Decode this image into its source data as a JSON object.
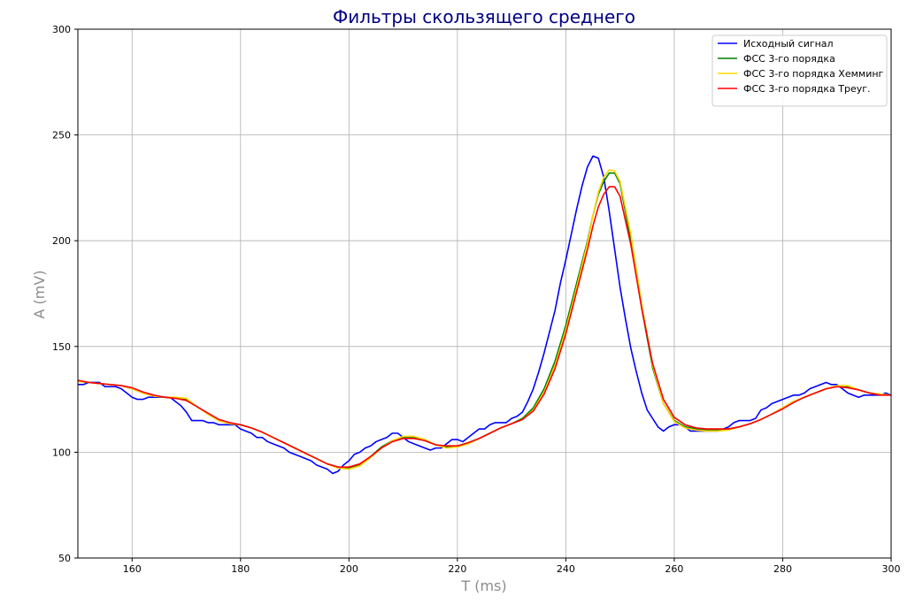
{
  "chart_data": {
    "type": "line",
    "title": "Фильтры скользящего среднего",
    "xlabel": "T (ms)",
    "ylabel": "A (mV)",
    "xlim": [
      150,
      300
    ],
    "ylim": [
      50,
      300
    ],
    "xticks": [
      160,
      180,
      200,
      220,
      240,
      260,
      280,
      300
    ],
    "yticks": [
      50,
      100,
      150,
      200,
      250,
      300
    ],
    "grid": true,
    "legend_position": "top-right",
    "series": [
      {
        "name": "Исходный сигнал",
        "color": "#0000ff",
        "x": [
          150,
          151,
          152,
          153,
          154,
          155,
          156,
          157,
          158,
          159,
          160,
          161,
          162,
          163,
          164,
          165,
          166,
          167,
          168,
          169,
          170,
          171,
          172,
          173,
          174,
          175,
          176,
          177,
          178,
          179,
          180,
          181,
          182,
          183,
          184,
          185,
          186,
          187,
          188,
          189,
          190,
          191,
          192,
          193,
          194,
          195,
          196,
          197,
          198,
          199,
          200,
          201,
          202,
          203,
          204,
          205,
          206,
          207,
          208,
          209,
          210,
          211,
          212,
          213,
          214,
          215,
          216,
          217,
          218,
          219,
          220,
          221,
          222,
          223,
          224,
          225,
          226,
          227,
          228,
          229,
          230,
          231,
          232,
          233,
          234,
          235,
          236,
          237,
          238,
          239,
          240,
          241,
          242,
          243,
          244,
          245,
          246,
          247,
          248,
          249,
          250,
          251,
          252,
          253,
          254,
          255,
          256,
          257,
          258,
          259,
          260,
          261,
          262,
          263,
          264,
          265,
          266,
          267,
          268,
          269,
          270,
          271,
          272,
          273,
          274,
          275,
          276,
          277,
          278,
          279,
          280,
          281,
          282,
          283,
          284,
          285,
          286,
          287,
          288,
          289,
          290,
          291,
          292,
          293,
          294,
          295,
          296,
          297,
          298,
          299,
          300
        ],
        "values": [
          132,
          132,
          133,
          133,
          133,
          131,
          131,
          131,
          130,
          128,
          126,
          125,
          125,
          126,
          126,
          126,
          126,
          126,
          124,
          122,
          119,
          115,
          115,
          115,
          114,
          114,
          113,
          113,
          113,
          113,
          111,
          110,
          109,
          107,
          107,
          105,
          104,
          103,
          102,
          100,
          99,
          98,
          97,
          96,
          94,
          93,
          92,
          90,
          91,
          94,
          96,
          99,
          100,
          102,
          103,
          105,
          106,
          107,
          109,
          109,
          107,
          105,
          104,
          103,
          102,
          101,
          102,
          102,
          104,
          106,
          106,
          105,
          107,
          109,
          111,
          111,
          113,
          114,
          114,
          114,
          116,
          117,
          119,
          124,
          130,
          138,
          147,
          157,
          167,
          180,
          191,
          203,
          215,
          226,
          235,
          240,
          239,
          230,
          214,
          196,
          178,
          163,
          149,
          138,
          128,
          120,
          116,
          112,
          110,
          112,
          113,
          113,
          112,
          110,
          110,
          110,
          110,
          110,
          110,
          111,
          112,
          114,
          115,
          115,
          115,
          116,
          120,
          121,
          123,
          124,
          125,
          126,
          127,
          127,
          128,
          130,
          131,
          132,
          133,
          132,
          132,
          130,
          128,
          127,
          126,
          127,
          127,
          127,
          127,
          128,
          127
        ]
      },
      {
        "name": "ФСС 3-го порядка",
        "color": "#008000",
        "x": [
          150,
          152,
          154,
          156,
          158,
          160,
          162,
          164,
          166,
          168,
          170,
          172,
          174,
          176,
          178,
          180,
          182,
          184,
          186,
          188,
          190,
          192,
          194,
          196,
          198,
          200,
          202,
          204,
          206,
          208,
          210,
          212,
          214,
          216,
          218,
          220,
          222,
          224,
          226,
          228,
          230,
          232,
          234,
          236,
          238,
          240,
          242,
          244,
          245,
          246,
          247,
          248,
          249,
          250,
          252,
          254,
          256,
          258,
          260,
          262,
          264,
          266,
          268,
          270,
          272,
          274,
          276,
          278,
          280,
          282,
          284,
          286,
          288,
          290,
          292,
          294,
          296,
          298,
          300
        ],
        "values": [
          133.5,
          133,
          132.5,
          132,
          131.5,
          130,
          128,
          126.5,
          126,
          125.5,
          125,
          121.5,
          118,
          115,
          113.5,
          113,
          111.5,
          109.5,
          107,
          104.5,
          102,
          99.5,
          97,
          94.5,
          93,
          92.5,
          94,
          98,
          102.5,
          105.5,
          107,
          107,
          105.5,
          103.5,
          102.5,
          103,
          104.5,
          106.5,
          109,
          111.5,
          113.5,
          116,
          121,
          130,
          143,
          160,
          180,
          200,
          212,
          222,
          228,
          232,
          232,
          227,
          200,
          168,
          140,
          123,
          115,
          112,
          111,
          110.5,
          110.5,
          111,
          112,
          113.5,
          115.5,
          118,
          121,
          124,
          126,
          128,
          130,
          131,
          131,
          129.5,
          128,
          127.5,
          127
        ]
      },
      {
        "name": "ФСС 3-го порядка Хемминг",
        "color": "#ffd700",
        "x": [
          150,
          152,
          154,
          156,
          158,
          160,
          162,
          164,
          166,
          168,
          170,
          172,
          174,
          176,
          178,
          180,
          182,
          184,
          186,
          188,
          190,
          192,
          194,
          196,
          198,
          200,
          202,
          204,
          206,
          208,
          210,
          212,
          214,
          216,
          218,
          220,
          222,
          224,
          226,
          228,
          230,
          232,
          234,
          236,
          238,
          240,
          242,
          244,
          245,
          246,
          247,
          248,
          249,
          250,
          252,
          254,
          256,
          258,
          260,
          262,
          264,
          266,
          268,
          270,
          272,
          274,
          276,
          278,
          280,
          282,
          284,
          286,
          288,
          290,
          292,
          294,
          296,
          298,
          300
        ],
        "values": [
          133.5,
          133,
          132.5,
          132,
          131.5,
          130,
          128,
          126.5,
          126,
          126,
          125.5,
          121.5,
          118,
          115,
          113.5,
          113,
          111.5,
          109.5,
          107,
          104.5,
          102,
          99.5,
          97,
          94.5,
          92.5,
          92,
          93.5,
          97.5,
          102,
          105.5,
          107.5,
          107.5,
          106,
          103.5,
          102,
          102.5,
          104,
          106.5,
          109,
          111.5,
          113.5,
          115.5,
          120,
          128.5,
          141,
          158,
          178,
          199,
          212,
          223,
          230,
          233.5,
          233,
          228,
          203,
          170,
          141,
          123,
          114.5,
          111.5,
          110.5,
          110,
          110,
          110.5,
          112,
          113.5,
          115.5,
          118,
          121,
          124,
          126,
          128,
          130,
          131.5,
          131.5,
          129.5,
          128,
          127.5,
          127
        ]
      },
      {
        "name": "ФСС 3-го порядка Треуг.",
        "color": "#ff0000",
        "x": [
          150,
          152,
          154,
          156,
          158,
          160,
          162,
          164,
          166,
          168,
          170,
          172,
          174,
          176,
          178,
          180,
          182,
          184,
          186,
          188,
          190,
          192,
          194,
          196,
          198,
          200,
          202,
          204,
          206,
          208,
          210,
          212,
          214,
          216,
          218,
          220,
          222,
          224,
          226,
          228,
          230,
          232,
          234,
          236,
          238,
          240,
          242,
          244,
          245,
          246,
          247,
          248,
          249,
          250,
          252,
          254,
          256,
          258,
          260,
          262,
          264,
          266,
          268,
          270,
          272,
          274,
          276,
          278,
          280,
          282,
          284,
          286,
          288,
          290,
          292,
          294,
          296,
          298,
          300
        ],
        "values": [
          134,
          133,
          132.5,
          132,
          131.5,
          130.5,
          128.5,
          127,
          126,
          125.5,
          124.5,
          121.5,
          118.5,
          115.5,
          114,
          113,
          111.5,
          109.5,
          107,
          104.5,
          102,
          99.5,
          97,
          94.5,
          93,
          93,
          94.5,
          98,
          102,
          105,
          106.5,
          106.5,
          105.5,
          103.5,
          103,
          103,
          104.5,
          106.5,
          109,
          111.5,
          113.5,
          115.5,
          119.5,
          127.5,
          139.5,
          156,
          176,
          196,
          207,
          216,
          222,
          225.5,
          225.5,
          221,
          198,
          168,
          142,
          125,
          116.5,
          113,
          111.5,
          111,
          111,
          111,
          112,
          113.5,
          115.5,
          118,
          120.5,
          123.5,
          126,
          128,
          130,
          131,
          130.5,
          129.5,
          128,
          127,
          127
        ]
      }
    ]
  }
}
